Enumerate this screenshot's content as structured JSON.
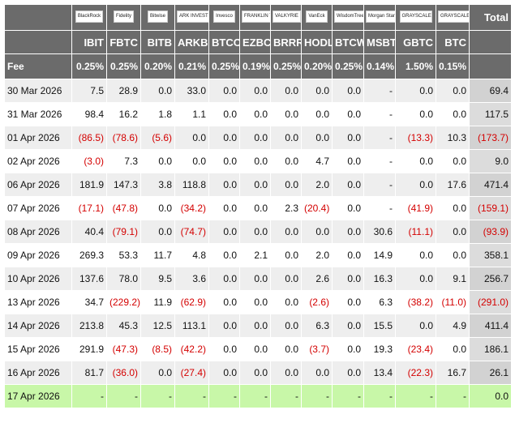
{
  "table": {
    "logos": [
      "BlackRock",
      "Fidelity",
      "Bitwise",
      "ARK INVEST",
      "Invesco",
      "FRANKLIN TEMPLETON",
      "VALKYRIE",
      "VanEck",
      "WisdomTree",
      "Morgan Stanley",
      "GRAYSCALE",
      "GRAYSCALE"
    ],
    "total_header": "Total",
    "tickers": [
      "IBIT",
      "FBTC",
      "BITB",
      "ARKB",
      "BTCO",
      "EZBC",
      "BRRR",
      "HODL",
      "BTCW",
      "MSBT",
      "GBTC",
      "BTC"
    ],
    "fee_label": "Fee",
    "fees": [
      "0.25%",
      "0.25%",
      "0.20%",
      "0.21%",
      "0.25%",
      "0.19%",
      "0.25%",
      "0.20%",
      "0.25%",
      "0.14%",
      "1.50%",
      "0.15%"
    ],
    "rows": [
      {
        "date": "30 Mar 2026",
        "cells": [
          "7.5",
          "28.9",
          "0.0",
          "33.0",
          "0.0",
          "0.0",
          "0.0",
          "0.0",
          "0.0",
          "-",
          "0.0",
          "0.0",
          "69.4"
        ]
      },
      {
        "date": "31 Mar 2026",
        "cells": [
          "98.4",
          "16.2",
          "1.8",
          "1.1",
          "0.0",
          "0.0",
          "0.0",
          "0.0",
          "0.0",
          "-",
          "0.0",
          "0.0",
          "117.5"
        ]
      },
      {
        "date": "01 Apr 2026",
        "cells": [
          "(86.5)",
          "(78.6)",
          "(5.6)",
          "0.0",
          "0.0",
          "0.0",
          "0.0",
          "0.0",
          "0.0",
          "-",
          "(13.3)",
          "10.3",
          "(173.7)"
        ]
      },
      {
        "date": "02 Apr 2026",
        "cells": [
          "(3.0)",
          "7.3",
          "0.0",
          "0.0",
          "0.0",
          "0.0",
          "0.0",
          "4.7",
          "0.0",
          "-",
          "0.0",
          "0.0",
          "9.0"
        ]
      },
      {
        "date": "06 Apr 2026",
        "cells": [
          "181.9",
          "147.3",
          "3.8",
          "118.8",
          "0.0",
          "0.0",
          "0.0",
          "2.0",
          "0.0",
          "-",
          "0.0",
          "17.6",
          "471.4"
        ]
      },
      {
        "date": "07 Apr 2026",
        "cells": [
          "(17.1)",
          "(47.8)",
          "0.0",
          "(34.2)",
          "0.0",
          "0.0",
          "2.3",
          "(20.4)",
          "0.0",
          "-",
          "(41.9)",
          "0.0",
          "(159.1)"
        ]
      },
      {
        "date": "08 Apr 2026",
        "cells": [
          "40.4",
          "(79.1)",
          "0.0",
          "(74.7)",
          "0.0",
          "0.0",
          "0.0",
          "0.0",
          "0.0",
          "30.6",
          "(11.1)",
          "0.0",
          "(93.9)"
        ]
      },
      {
        "date": "09 Apr 2026",
        "cells": [
          "269.3",
          "53.3",
          "11.7",
          "4.8",
          "0.0",
          "2.1",
          "0.0",
          "2.0",
          "0.0",
          "14.9",
          "0.0",
          "0.0",
          "358.1"
        ]
      },
      {
        "date": "10 Apr 2026",
        "cells": [
          "137.6",
          "78.0",
          "9.5",
          "3.6",
          "0.0",
          "0.0",
          "0.0",
          "2.6",
          "0.0",
          "16.3",
          "0.0",
          "9.1",
          "256.7"
        ]
      },
      {
        "date": "13 Apr 2026",
        "cells": [
          "34.7",
          "(229.2)",
          "11.9",
          "(62.9)",
          "0.0",
          "0.0",
          "0.0",
          "(2.6)",
          "0.0",
          "6.3",
          "(38.2)",
          "(11.0)",
          "(291.0)"
        ]
      },
      {
        "date": "14 Apr 2026",
        "cells": [
          "213.8",
          "45.3",
          "12.5",
          "113.1",
          "0.0",
          "0.0",
          "0.0",
          "6.3",
          "0.0",
          "15.5",
          "0.0",
          "4.9",
          "411.4"
        ]
      },
      {
        "date": "15 Apr 2026",
        "cells": [
          "291.9",
          "(47.3)",
          "(8.5)",
          "(42.2)",
          "0.0",
          "0.0",
          "0.0",
          "(3.7)",
          "0.0",
          "19.3",
          "(23.4)",
          "0.0",
          "186.1"
        ]
      },
      {
        "date": "16 Apr 2026",
        "cells": [
          "81.7",
          "(36.0)",
          "0.0",
          "(27.4)",
          "0.0",
          "0.0",
          "0.0",
          "0.0",
          "0.0",
          "13.4",
          "(22.3)",
          "16.7",
          "26.1"
        ]
      },
      {
        "date": "17 Apr 2026",
        "cells": [
          "-",
          "-",
          "-",
          "-",
          "-",
          "-",
          "-",
          "-",
          "-",
          "-",
          "-",
          "-",
          "0.0"
        ]
      }
    ]
  }
}
